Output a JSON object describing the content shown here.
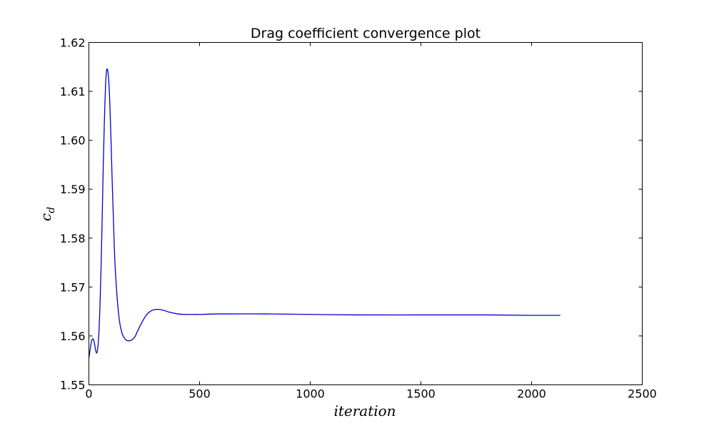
{
  "chart_data": {
    "type": "line",
    "title": "Drag coefficient convergence plot",
    "xlabel": "iteration",
    "ylabel": "c",
    "ylabel_subscript": "d",
    "xlim": [
      0,
      2500
    ],
    "ylim": [
      1.55,
      1.62
    ],
    "xticks": [
      0,
      500,
      1000,
      1500,
      2000,
      2500
    ],
    "xtick_labels": [
      "0",
      "500",
      "1000",
      "1500",
      "2000",
      "2500"
    ],
    "yticks": [
      1.55,
      1.56,
      1.57,
      1.58,
      1.59,
      1.6,
      1.61,
      1.62
    ],
    "ytick_labels": [
      "1.55",
      "1.56",
      "1.57",
      "1.58",
      "1.59",
      "1.60",
      "1.61",
      "1.62"
    ],
    "grid": false,
    "series": [
      {
        "name": "cd",
        "color": "#0000cc",
        "x": [
          0,
          5,
          10,
          15,
          20,
          25,
          30,
          35,
          40,
          45,
          50,
          55,
          60,
          65,
          70,
          75,
          80,
          85,
          90,
          95,
          100,
          105,
          110,
          115,
          120,
          130,
          140,
          150,
          160,
          170,
          180,
          190,
          200,
          210,
          220,
          240,
          260,
          280,
          300,
          320,
          340,
          360,
          380,
          400,
          430,
          460,
          500,
          600,
          800,
          1000,
          1200,
          1500,
          1800,
          2000,
          2130
        ],
        "y": [
          1.5555,
          1.557,
          1.5585,
          1.5593,
          1.5593,
          1.5585,
          1.5572,
          1.5565,
          1.5575,
          1.5605,
          1.566,
          1.574,
          1.584,
          1.595,
          1.604,
          1.611,
          1.6143,
          1.6142,
          1.612,
          1.607,
          1.6,
          1.592,
          1.585,
          1.578,
          1.573,
          1.5665,
          1.5625,
          1.5605,
          1.5596,
          1.5591,
          1.559,
          1.5591,
          1.5594,
          1.56,
          1.561,
          1.5628,
          1.5643,
          1.5651,
          1.5654,
          1.5654,
          1.5652,
          1.5649,
          1.5647,
          1.5645,
          1.5644,
          1.5644,
          1.5644,
          1.5645,
          1.5645,
          1.5644,
          1.5643,
          1.5643,
          1.5643,
          1.5642,
          1.5642
        ]
      }
    ]
  }
}
